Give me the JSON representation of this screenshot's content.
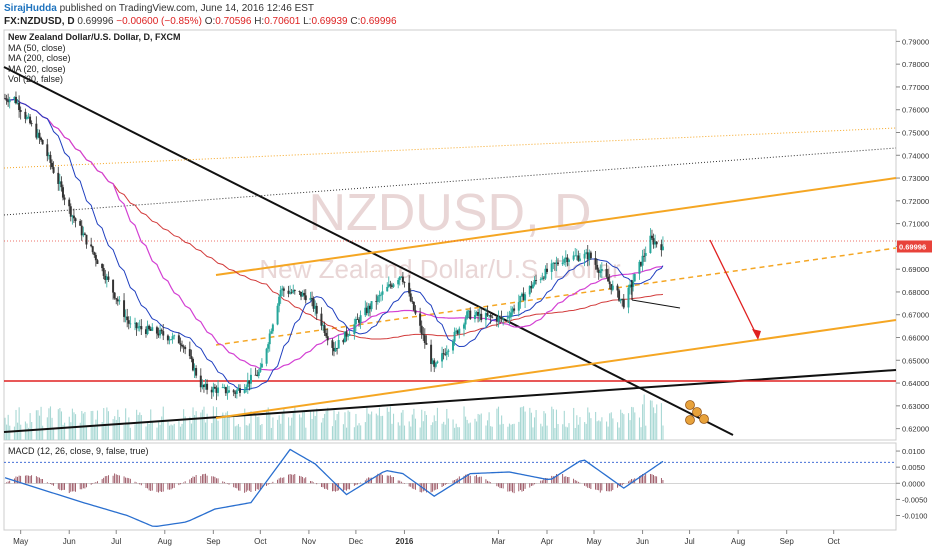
{
  "header": {
    "author": "SirajHudda",
    "published": "published on TradingView.com, June 14, 2016 12:46 EST",
    "symbol": "FX:NZDUSD, D",
    "last": "0.69996",
    "change": "−0.00600 (−0.85%)",
    "ohlc": {
      "O": "0.70596",
      "H": "0.70601",
      "L": "0.69939",
      "C": "0.69996"
    }
  },
  "legend": {
    "title": "New Zealand Dollar/U.S. Dollar, D, FXCM",
    "ma50": "MA (50, close)",
    "ma200": "MA (200, close)",
    "ma20": "MA (20, close)",
    "vol": "Vol (20, false)"
  },
  "watermark": {
    "symbol": "NZDUSD, D",
    "name": "New Zealand Dollar/U.S. Dollar"
  },
  "macd_legend": "MACD (12, 26, close, 9, false, true)",
  "colors": {
    "bull": "#26a69a",
    "bear": "#333333",
    "ma50": "#1f3fbf",
    "ma200": "#d23b3b",
    "ma20": "#d340d3",
    "orange": "#f5a623",
    "red": "#e02020",
    "macd": "#2a6fcf",
    "price_tag": "#e8423a",
    "volume": "#a8d8d4"
  },
  "chart_data": {
    "type": "candlestick",
    "x_labels": [
      "May",
      "Jun",
      "Jul",
      "Aug",
      "Sep",
      "Oct",
      "Nov",
      "Dec",
      "2016",
      "Mar",
      "Apr",
      "May",
      "Jun",
      "Jul",
      "Aug",
      "Sep",
      "Oct"
    ],
    "y_ticks": [
      "0.79000",
      "0.78000",
      "0.77000",
      "0.76000",
      "0.75000",
      "0.74000",
      "0.73000",
      "0.72000",
      "0.71000",
      "0.70000",
      "0.69000",
      "0.68000",
      "0.67000",
      "0.66000",
      "0.65000",
      "0.64000",
      "0.63000",
      "0.62000"
    ],
    "ylim": [
      0.615,
      0.795
    ],
    "last_price_label": "0.69996",
    "last_price": 0.69996,
    "price_path": [
      {
        "date": "2015-04-27",
        "price": 0.765
      },
      {
        "date": "2015-05-15",
        "price": 0.745
      },
      {
        "date": "2015-06-02",
        "price": 0.715
      },
      {
        "date": "2015-06-22",
        "price": 0.69
      },
      {
        "date": "2015-07-10",
        "price": 0.665
      },
      {
        "date": "2015-07-28",
        "price": 0.662
      },
      {
        "date": "2015-08-12",
        "price": 0.658
      },
      {
        "date": "2015-08-25",
        "price": 0.638
      },
      {
        "date": "2015-09-15",
        "price": 0.636
      },
      {
        "date": "2015-10-01",
        "price": 0.645
      },
      {
        "date": "2015-10-14",
        "price": 0.681
      },
      {
        "date": "2015-11-01",
        "price": 0.678
      },
      {
        "date": "2015-11-17",
        "price": 0.655
      },
      {
        "date": "2015-12-08",
        "price": 0.672
      },
      {
        "date": "2015-12-30",
        "price": 0.688
      },
      {
        "date": "2016-01-20",
        "price": 0.646
      },
      {
        "date": "2016-02-10",
        "price": 0.67
      },
      {
        "date": "2016-03-05",
        "price": 0.668
      },
      {
        "date": "2016-03-25",
        "price": 0.685
      },
      {
        "date": "2016-04-12",
        "price": 0.695
      },
      {
        "date": "2016-04-28",
        "price": 0.696
      },
      {
        "date": "2016-05-20",
        "price": 0.675
      },
      {
        "date": "2016-06-06",
        "price": 0.703
      },
      {
        "date": "2016-06-14",
        "price": 0.69996
      }
    ],
    "macd": {
      "y_ticks": [
        "0.0100",
        "0.0050",
        "0.0000",
        "-0.0050",
        "-0.0100"
      ],
      "ylim": [
        -0.0145,
        0.0125
      ],
      "line": [
        {
          "date": "2015-04-27",
          "value": 0.0008
        },
        {
          "date": "2015-05-15",
          "value": -0.002
        },
        {
          "date": "2015-06-10",
          "value": -0.006
        },
        {
          "date": "2015-07-08",
          "value": -0.01
        },
        {
          "date": "2015-07-25",
          "value": -0.0135
        },
        {
          "date": "2015-08-15",
          "value": -0.012
        },
        {
          "date": "2015-09-02",
          "value": -0.008
        },
        {
          "date": "2015-09-25",
          "value": -0.006
        },
        {
          "date": "2015-10-20",
          "value": 0.0105
        },
        {
          "date": "2015-11-05",
          "value": 0.006
        },
        {
          "date": "2015-11-25",
          "value": -0.0035
        },
        {
          "date": "2015-12-20",
          "value": 0.004
        },
        {
          "date": "2015-12-31",
          "value": 0.003
        },
        {
          "date": "2016-01-20",
          "value": -0.004
        },
        {
          "date": "2016-02-12",
          "value": 0.003
        },
        {
          "date": "2016-03-08",
          "value": 0.0035
        },
        {
          "date": "2016-04-03",
          "value": 0.001
        },
        {
          "date": "2016-04-24",
          "value": 0.0075
        },
        {
          "date": "2016-05-20",
          "value": -0.0015
        },
        {
          "date": "2016-06-14",
          "value": 0.0068
        }
      ]
    }
  }
}
